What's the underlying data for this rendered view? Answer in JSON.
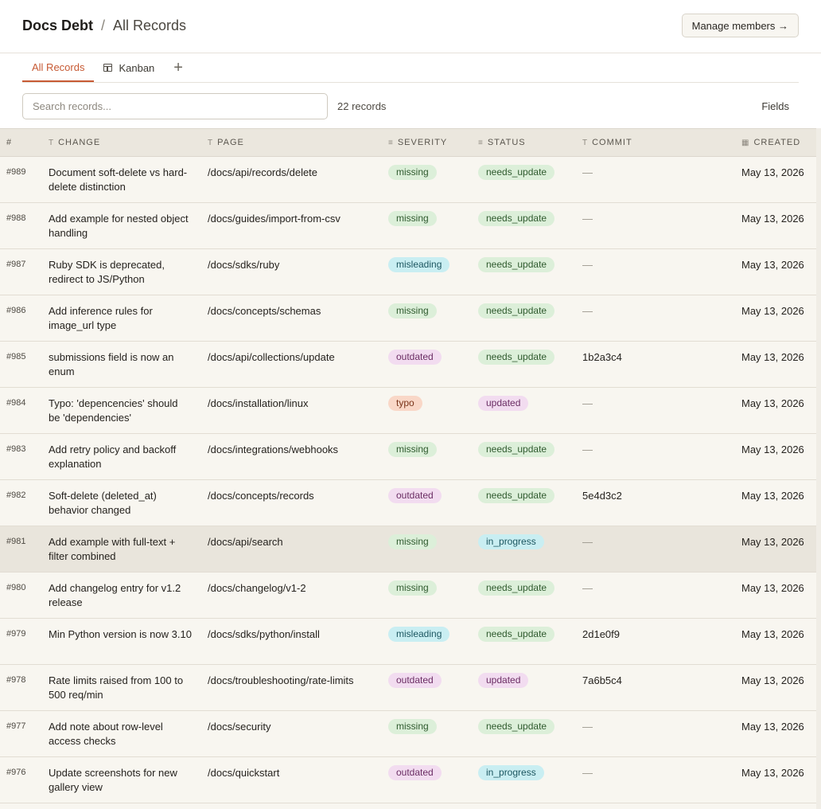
{
  "header": {
    "project": "Docs Debt",
    "separator": "/",
    "view_name": "All Records",
    "manage_label": "Manage members →"
  },
  "tabs": [
    {
      "label": "All Records",
      "active": true
    },
    {
      "label": "Kanban",
      "active": false
    }
  ],
  "add_tab_label": "+",
  "toolbar": {
    "search_placeholder": "Search records...",
    "record_count": "22 records",
    "fields_label": "Fields"
  },
  "columns": [
    {
      "label": "#",
      "type_icon": ""
    },
    {
      "label": "CHANGE",
      "type_icon": "T"
    },
    {
      "label": "PAGE",
      "type_icon": "T"
    },
    {
      "label": "SEVERITY",
      "type_icon": "≡"
    },
    {
      "label": "STATUS",
      "type_icon": "≡"
    },
    {
      "label": "COMMIT",
      "type_icon": "T"
    },
    {
      "label": "CREATED",
      "type_icon": "▦"
    }
  ],
  "rows": [
    {
      "id": "#989",
      "change": "Document soft-delete vs hard-delete distinction",
      "page": "/docs/api/records/delete",
      "severity": "missing",
      "status": "needs_update",
      "commit": "—",
      "created": "May 13, 2026"
    },
    {
      "id": "#988",
      "change": "Add example for nested object handling",
      "page": "/docs/guides/import-from-csv",
      "severity": "missing",
      "status": "needs_update",
      "commit": "—",
      "created": "May 13, 2026"
    },
    {
      "id": "#987",
      "change": "Ruby SDK is deprecated, redirect to JS/Python",
      "page": "/docs/sdks/ruby",
      "severity": "misleading",
      "status": "needs_update",
      "commit": "—",
      "created": "May 13, 2026"
    },
    {
      "id": "#986",
      "change": "Add inference rules for image_url type",
      "page": "/docs/concepts/schemas",
      "severity": "missing",
      "status": "needs_update",
      "commit": "—",
      "created": "May 13, 2026"
    },
    {
      "id": "#985",
      "change": "submissions field is now an enum",
      "page": "/docs/api/collections/update",
      "severity": "outdated",
      "status": "needs_update",
      "commit": "1b2a3c4",
      "created": "May 13, 2026"
    },
    {
      "id": "#984",
      "change": "Typo: 'depencencies' should be 'dependencies'",
      "page": "/docs/installation/linux",
      "severity": "typo",
      "status": "updated",
      "commit": "—",
      "created": "May 13, 2026"
    },
    {
      "id": "#983",
      "change": "Add retry policy and backoff explanation",
      "page": "/docs/integrations/webhooks",
      "severity": "missing",
      "status": "needs_update",
      "commit": "—",
      "created": "May 13, 2026"
    },
    {
      "id": "#982",
      "change": "Soft-delete (deleted_at) behavior changed",
      "page": "/docs/concepts/records",
      "severity": "outdated",
      "status": "needs_update",
      "commit": "5e4d3c2",
      "created": "May 13, 2026"
    },
    {
      "id": "#981",
      "change": "Add example with full-text + filter combined",
      "page": "/docs/api/search",
      "severity": "missing",
      "status": "in_progress",
      "commit": "—",
      "created": "May 13, 2026",
      "highlight": true
    },
    {
      "id": "#980",
      "change": "Add changelog entry for v1.2 release",
      "page": "/docs/changelog/v1-2",
      "severity": "missing",
      "status": "needs_update",
      "commit": "—",
      "created": "May 13, 2026"
    },
    {
      "id": "#979",
      "change": "Min Python version is now 3.10",
      "page": "/docs/sdks/python/install",
      "severity": "misleading",
      "status": "needs_update",
      "commit": "2d1e0f9",
      "created": "May 13, 2026"
    },
    {
      "id": "#978",
      "change": "Rate limits raised from 100 to 500 req/min",
      "page": "/docs/troubleshooting/rate-limits",
      "severity": "outdated",
      "status": "updated",
      "commit": "7a6b5c4",
      "created": "May 13, 2026"
    },
    {
      "id": "#977",
      "change": "Add note about row-level access checks",
      "page": "/docs/security",
      "severity": "missing",
      "status": "needs_update",
      "commit": "—",
      "created": "May 13, 2026"
    },
    {
      "id": "#976",
      "change": "Update screenshots for new gallery view",
      "page": "/docs/quickstart",
      "severity": "outdated",
      "status": "in_progress",
      "commit": "—",
      "created": "May 13, 2026"
    }
  ]
}
